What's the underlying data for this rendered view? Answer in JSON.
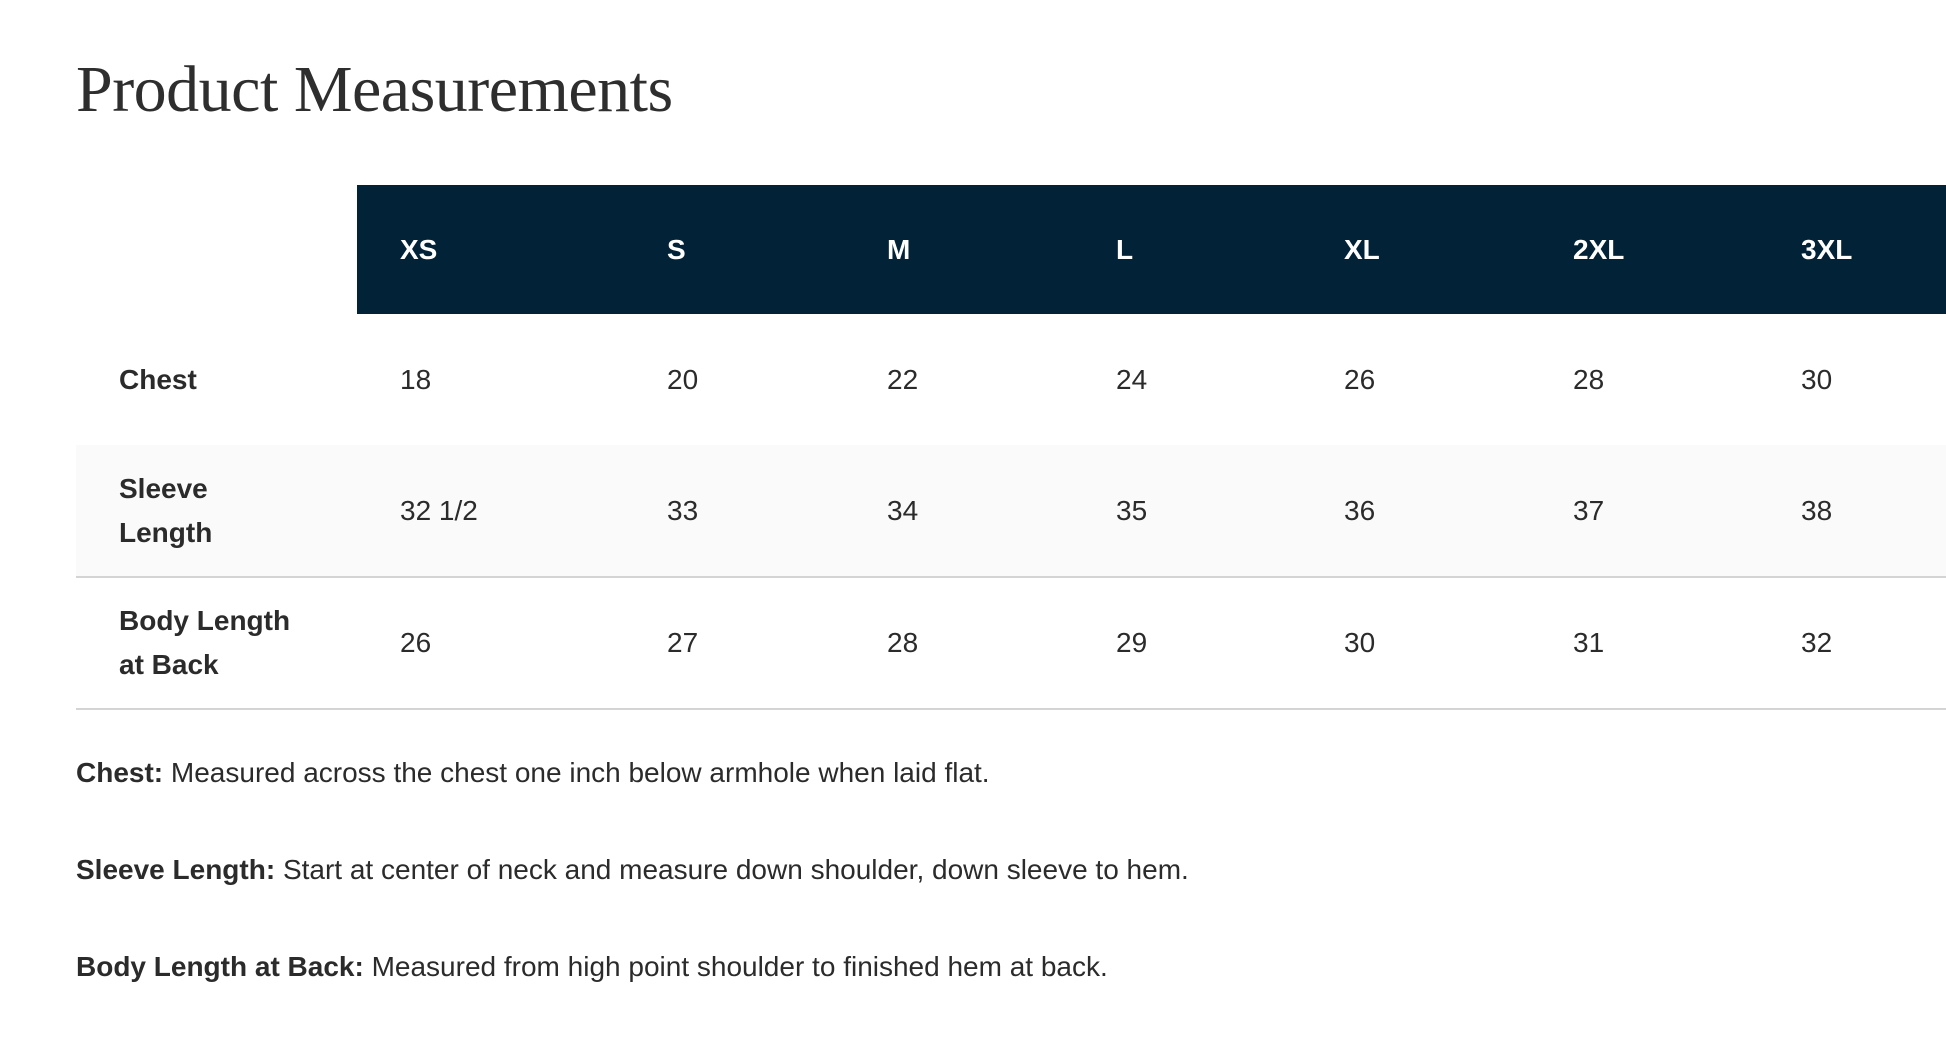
{
  "title": "Product Measurements",
  "colors": {
    "header_bg": "#022237",
    "header_text": "#ffffff",
    "alt_row_bg": "#fafafa"
  },
  "table": {
    "sizes": [
      "XS",
      "S",
      "M",
      "L",
      "XL",
      "2XL",
      "3XL"
    ],
    "rows": [
      {
        "label": "Chest",
        "values": [
          "18",
          "20",
          "22",
          "24",
          "26",
          "28",
          "30"
        ]
      },
      {
        "label": "Sleeve Length",
        "values": [
          "32 1/2",
          "33",
          "34",
          "35",
          "36",
          "37",
          "38"
        ]
      },
      {
        "label": "Body Length at Back",
        "values": [
          "26",
          "27",
          "28",
          "29",
          "30",
          "31",
          "32"
        ]
      }
    ]
  },
  "notes": [
    {
      "term": "Chest:",
      "text": " Measured across the chest one inch below armhole when laid flat."
    },
    {
      "term": "Sleeve Length:",
      "text": " Start at center of neck and measure down shoulder, down sleeve to hem."
    },
    {
      "term": "Body Length at Back:",
      "text": " Measured from high point shoulder to finished hem at back."
    }
  ]
}
